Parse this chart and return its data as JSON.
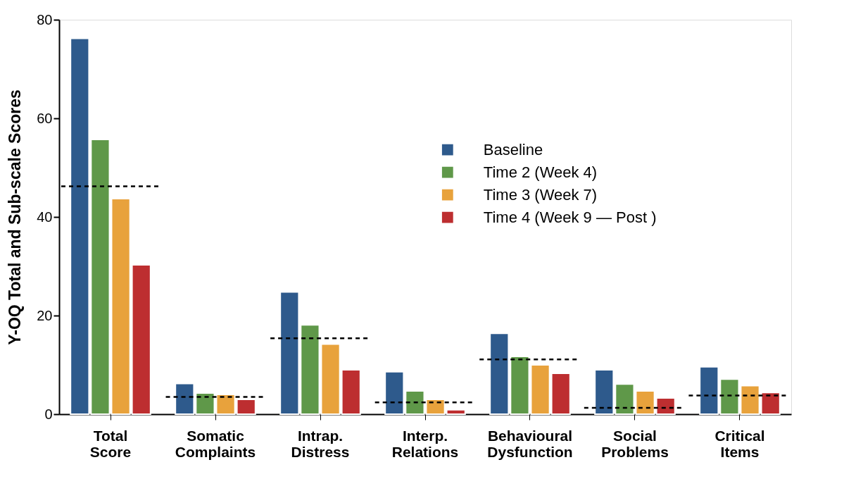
{
  "chart_data": {
    "type": "bar",
    "ylabel": "Y-OQ Total and Sub-scale Scores",
    "categories": [
      "Total Score",
      "Somatic Complaints",
      "Intrap. Distress",
      "Interp. Relations",
      "Behavioural Dysfunction",
      "Social Problems",
      "Critical Items"
    ],
    "series": [
      {
        "name": "Baseline",
        "color": "#2e5a8c",
        "values": [
          76.2,
          6.2,
          24.8,
          8.6,
          16.4,
          9.0,
          9.6
        ]
      },
      {
        "name": "Time 2 (Week 4)",
        "color": "#5f9849",
        "values": [
          55.7,
          4.3,
          18.1,
          4.7,
          11.7,
          6.1,
          7.1
        ]
      },
      {
        "name": "Time 3 (Week 7)",
        "color": "#e8a23c",
        "values": [
          43.7,
          4.0,
          14.2,
          3.0,
          10.0,
          4.7,
          5.8
        ]
      },
      {
        "name": "Time 4 (Week 9 — Post )",
        "color": "#bd2e30",
        "values": [
          30.3,
          3.0,
          9.0,
          0.9,
          8.3,
          3.3,
          4.4
        ]
      }
    ],
    "ref_lines": [
      {
        "axis": "y",
        "value": 46.2,
        "line_style": "dashed"
      },
      {
        "axis": "y",
        "value": 3.5,
        "line_style": "dashed"
      },
      {
        "axis": "y",
        "value": 15.4,
        "line_style": "dashed"
      },
      {
        "axis": "y",
        "value": 2.4,
        "line_style": "dashed"
      },
      {
        "axis": "y",
        "value": 11.1,
        "line_style": "dashed"
      },
      {
        "axis": "y",
        "value": 1.3,
        "line_style": "dashed"
      },
      {
        "axis": "y",
        "value": 3.8,
        "line_style": "dashed"
      }
    ],
    "ylim": [
      0,
      80
    ],
    "yticks": [
      0,
      20,
      40,
      60,
      80
    ],
    "grid": false,
    "legend": "top right"
  }
}
